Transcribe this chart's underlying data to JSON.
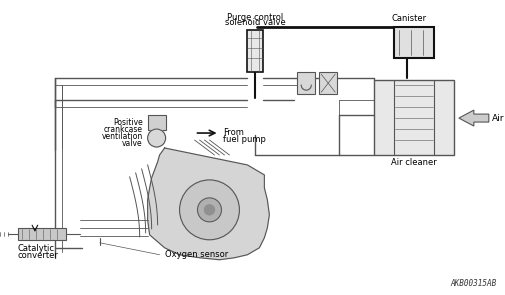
{
  "bg_color": "#ffffff",
  "line_color": "#555555",
  "dark_line": "#111111",
  "text_color": "#000000",
  "watermark": "AKB00315AB",
  "labels": {
    "purge_control_1": "Purge control",
    "purge_control_2": "solenoid valve",
    "canister": "Canister",
    "air": "Air",
    "air_cleaner": "Air cleaner",
    "pcv_1": "Positive",
    "pcv_2": "crankcase",
    "pcv_3": "ventilation",
    "pcv_4": "valve",
    "from_1": "From",
    "from_2": "fuel pump",
    "cat_1": "Catalytic",
    "cat_2": "converter",
    "oxygen": "Oxygen sensor"
  }
}
